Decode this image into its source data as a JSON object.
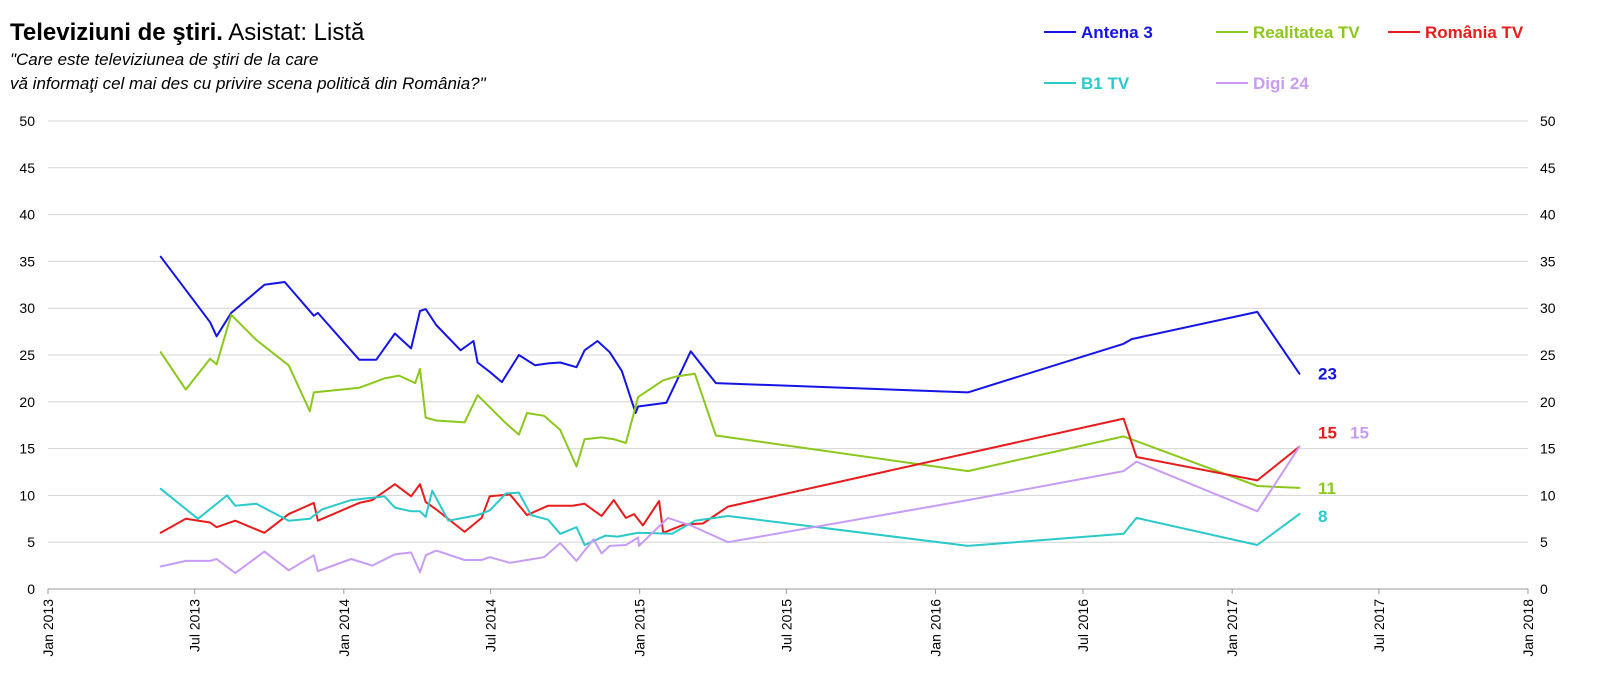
{
  "chart_data": {
    "type": "line",
    "title": "Televiziuni de ştiri.",
    "title_suffix": "Asistat: Listă",
    "subtitle_lines": [
      "\"Care este televiziunea de ştiri de la care",
      "vă informaţi cel mai des cu privire scena politică din România?\""
    ],
    "xlabel": "",
    "ylabel": "",
    "ylim": [
      0,
      50
    ],
    "y_ticks": [
      0,
      5,
      10,
      15,
      20,
      25,
      30,
      35,
      40,
      45,
      50
    ],
    "xlim": [
      "2013-01-01",
      "2018-01-01"
    ],
    "x_ticks": [
      {
        "date": "2013-01-01",
        "label": "Jan 2013"
      },
      {
        "date": "2013-07-01",
        "label": "Jul 2013"
      },
      {
        "date": "2014-01-01",
        "label": "Jan 2014"
      },
      {
        "date": "2014-07-01",
        "label": "Jul 2014"
      },
      {
        "date": "2015-01-01",
        "label": "Jan 2015"
      },
      {
        "date": "2015-07-01",
        "label": "Jul 2015"
      },
      {
        "date": "2016-01-01",
        "label": "Jan 2016"
      },
      {
        "date": "2016-07-01",
        "label": "Jul 2016"
      },
      {
        "date": "2017-01-01",
        "label": "Jan 2017"
      },
      {
        "date": "2017-07-01",
        "label": "Jul 2017"
      },
      {
        "date": "2018-01-01",
        "label": "Jan 2018"
      }
    ],
    "grid": true,
    "legend_position": "top-right",
    "series": [
      {
        "name": "Antena 3",
        "color": "#1414e6",
        "end_label": "23",
        "points": [
          [
            "2013-05-20",
            35.5
          ],
          [
            "2013-07-20",
            28.5
          ],
          [
            "2013-07-28",
            27
          ],
          [
            "2013-08-15",
            29.5
          ],
          [
            "2013-09-25",
            32.5
          ],
          [
            "2013-10-20",
            32.8
          ],
          [
            "2013-11-25",
            29.2
          ],
          [
            "2013-11-30",
            29.5
          ],
          [
            "2014-01-20",
            24.5
          ],
          [
            "2014-02-10",
            24.5
          ],
          [
            "2014-03-05",
            27.3
          ],
          [
            "2014-03-25",
            25.7
          ],
          [
            "2014-04-05",
            29.7
          ],
          [
            "2014-04-12",
            29.9
          ],
          [
            "2014-04-25",
            28.2
          ],
          [
            "2014-05-25",
            25.5
          ],
          [
            "2014-06-10",
            26.5
          ],
          [
            "2014-06-15",
            24.2
          ],
          [
            "2014-06-30",
            23.2
          ],
          [
            "2014-07-15",
            22.1
          ],
          [
            "2014-08-05",
            25
          ],
          [
            "2014-08-25",
            23.9
          ],
          [
            "2014-09-10",
            24.1
          ],
          [
            "2014-09-25",
            24.2
          ],
          [
            "2014-10-15",
            23.7
          ],
          [
            "2014-10-25",
            25.5
          ],
          [
            "2014-11-10",
            26.5
          ],
          [
            "2014-11-25",
            25.3
          ],
          [
            "2014-12-10",
            23.3
          ],
          [
            "2014-12-27",
            18.8
          ],
          [
            "2014-12-30",
            19.5
          ],
          [
            "2015-02-03",
            19.9
          ],
          [
            "2015-03-05",
            25.4
          ],
          [
            "2015-04-05",
            22
          ],
          [
            "2016-02-10",
            21
          ],
          [
            "2016-08-20",
            26.2
          ],
          [
            "2016-08-30",
            26.7
          ],
          [
            "2017-02-01",
            29.6
          ],
          [
            "2017-03-25",
            23
          ]
        ]
      },
      {
        "name": "Realitatea TV",
        "color": "#8cc71d",
        "end_label": "11",
        "points": [
          [
            "2013-05-20",
            25.3
          ],
          [
            "2013-06-20",
            21.3
          ],
          [
            "2013-07-20",
            24.6
          ],
          [
            "2013-07-28",
            24
          ],
          [
            "2013-08-15",
            29.3
          ],
          [
            "2013-09-15",
            26.6
          ],
          [
            "2013-10-25",
            23.9
          ],
          [
            "2013-11-20",
            19
          ],
          [
            "2013-11-25",
            21
          ],
          [
            "2014-01-20",
            21.5
          ],
          [
            "2014-02-20",
            22.5
          ],
          [
            "2014-03-10",
            22.8
          ],
          [
            "2014-03-30",
            22
          ],
          [
            "2014-04-05",
            23.5
          ],
          [
            "2014-04-12",
            18.3
          ],
          [
            "2014-04-25",
            18
          ],
          [
            "2014-05-30",
            17.8
          ],
          [
            "2014-06-15",
            20.7
          ],
          [
            "2014-07-20",
            17.7
          ],
          [
            "2014-08-05",
            16.5
          ],
          [
            "2014-08-15",
            18.8
          ],
          [
            "2014-09-05",
            18.5
          ],
          [
            "2014-09-25",
            17
          ],
          [
            "2014-10-15",
            13.1
          ],
          [
            "2014-10-25",
            16
          ],
          [
            "2014-11-15",
            16.2
          ],
          [
            "2014-11-30",
            16
          ],
          [
            "2014-12-15",
            15.6
          ],
          [
            "2014-12-30",
            20.5
          ],
          [
            "2015-01-30",
            22.3
          ],
          [
            "2015-02-15",
            22.7
          ],
          [
            "2015-03-10",
            23
          ],
          [
            "2015-04-05",
            16.4
          ],
          [
            "2016-02-10",
            12.6
          ],
          [
            "2016-08-20",
            16.3
          ],
          [
            "2017-02-01",
            11
          ],
          [
            "2017-03-25",
            10.8
          ]
        ]
      },
      {
        "name": "România TV",
        "color": "#e81c1c",
        "end_label": "15",
        "points": [
          [
            "2013-05-20",
            6
          ],
          [
            "2013-06-20",
            7.5
          ],
          [
            "2013-07-20",
            7.1
          ],
          [
            "2013-07-28",
            6.6
          ],
          [
            "2013-08-20",
            7.3
          ],
          [
            "2013-09-25",
            6
          ],
          [
            "2013-10-25",
            8
          ],
          [
            "2013-11-25",
            9.2
          ],
          [
            "2013-11-30",
            7.3
          ],
          [
            "2014-01-20",
            9.2
          ],
          [
            "2014-02-05",
            9.5
          ],
          [
            "2014-03-05",
            11.2
          ],
          [
            "2014-03-25",
            9.9
          ],
          [
            "2014-04-05",
            11.2
          ],
          [
            "2014-04-12",
            9.3
          ],
          [
            "2014-04-25",
            8.5
          ],
          [
            "2014-05-30",
            6.1
          ],
          [
            "2014-06-20",
            7.6
          ],
          [
            "2014-06-30",
            9.9
          ],
          [
            "2014-07-25",
            10.1
          ],
          [
            "2014-08-15",
            7.9
          ],
          [
            "2014-09-10",
            8.9
          ],
          [
            "2014-10-10",
            8.9
          ],
          [
            "2014-10-25",
            9.1
          ],
          [
            "2014-11-15",
            7.8
          ],
          [
            "2014-11-30",
            9.5
          ],
          [
            "2014-12-15",
            7.6
          ],
          [
            "2014-12-25",
            8
          ],
          [
            "2015-01-05",
            6.8
          ],
          [
            "2015-01-25",
            9.4
          ],
          [
            "2015-01-30",
            6
          ],
          [
            "2015-02-25",
            6.9
          ],
          [
            "2015-03-20",
            7
          ],
          [
            "2015-04-20",
            8.8
          ],
          [
            "2016-08-20",
            18.2
          ],
          [
            "2016-09-05",
            14.1
          ],
          [
            "2017-02-01",
            11.6
          ],
          [
            "2017-03-25",
            15.2
          ]
        ]
      },
      {
        "name": "B1 TV",
        "color": "#2bc9c9",
        "end_label": "8",
        "points": [
          [
            "2013-05-20",
            10.7
          ],
          [
            "2013-07-05",
            7.5
          ],
          [
            "2013-08-10",
            10
          ],
          [
            "2013-08-20",
            8.9
          ],
          [
            "2013-09-15",
            9.1
          ],
          [
            "2013-10-25",
            7.3
          ],
          [
            "2013-11-20",
            7.5
          ],
          [
            "2013-12-05",
            8.5
          ],
          [
            "2014-01-10",
            9.5
          ],
          [
            "2014-02-20",
            9.9
          ],
          [
            "2014-03-05",
            8.7
          ],
          [
            "2014-03-25",
            8.3
          ],
          [
            "2014-04-05",
            8.3
          ],
          [
            "2014-04-12",
            7.7
          ],
          [
            "2014-04-20",
            10.5
          ],
          [
            "2014-05-10",
            7.3
          ],
          [
            "2014-06-15",
            7.9
          ],
          [
            "2014-06-30",
            8.4
          ],
          [
            "2014-07-20",
            10.2
          ],
          [
            "2014-08-05",
            10.3
          ],
          [
            "2014-08-20",
            7.9
          ],
          [
            "2014-09-10",
            7.4
          ],
          [
            "2014-09-25",
            5.9
          ],
          [
            "2014-10-15",
            6.6
          ],
          [
            "2014-10-25",
            4.7
          ],
          [
            "2014-11-20",
            5.7
          ],
          [
            "2014-12-05",
            5.6
          ],
          [
            "2014-12-30",
            6
          ],
          [
            "2015-02-10",
            5.9
          ],
          [
            "2015-03-10",
            7.3
          ],
          [
            "2015-04-20",
            7.8
          ],
          [
            "2016-02-10",
            4.6
          ],
          [
            "2016-08-20",
            5.9
          ],
          [
            "2016-09-05",
            7.6
          ],
          [
            "2017-02-01",
            4.7
          ],
          [
            "2017-03-25",
            8
          ]
        ]
      },
      {
        "name": "Digi 24",
        "color": "#c89cf5",
        "end_label": "15",
        "points": [
          [
            "2013-05-20",
            2.4
          ],
          [
            "2013-06-20",
            3
          ],
          [
            "2013-07-20",
            3
          ],
          [
            "2013-07-28",
            3.2
          ],
          [
            "2013-08-20",
            1.7
          ],
          [
            "2013-09-25",
            4
          ],
          [
            "2013-10-25",
            2
          ],
          [
            "2013-11-25",
            3.6
          ],
          [
            "2013-11-30",
            1.9
          ],
          [
            "2014-01-10",
            3.2
          ],
          [
            "2014-02-05",
            2.5
          ],
          [
            "2014-03-05",
            3.7
          ],
          [
            "2014-03-25",
            3.9
          ],
          [
            "2014-04-05",
            1.8
          ],
          [
            "2014-04-12",
            3.6
          ],
          [
            "2014-04-25",
            4.1
          ],
          [
            "2014-05-30",
            3.1
          ],
          [
            "2014-06-20",
            3.1
          ],
          [
            "2014-06-30",
            3.4
          ],
          [
            "2014-07-25",
            2.8
          ],
          [
            "2014-08-15",
            3.1
          ],
          [
            "2014-09-05",
            3.4
          ],
          [
            "2014-09-25",
            4.9
          ],
          [
            "2014-10-15",
            3
          ],
          [
            "2014-11-05",
            5.3
          ],
          [
            "2014-11-15",
            3.8
          ],
          [
            "2014-11-25",
            4.6
          ],
          [
            "2014-12-15",
            4.7
          ],
          [
            "2014-12-30",
            5.5
          ],
          [
            "2014-12-31",
            4.6
          ],
          [
            "2015-02-05",
            7.6
          ],
          [
            "2015-03-05",
            6.8
          ],
          [
            "2015-04-20",
            5
          ],
          [
            "2016-02-10",
            9.5
          ],
          [
            "2016-08-20",
            12.6
          ],
          [
            "2016-09-05",
            13.6
          ],
          [
            "2017-02-01",
            8.3
          ],
          [
            "2017-03-25",
            15.2
          ]
        ]
      }
    ]
  }
}
